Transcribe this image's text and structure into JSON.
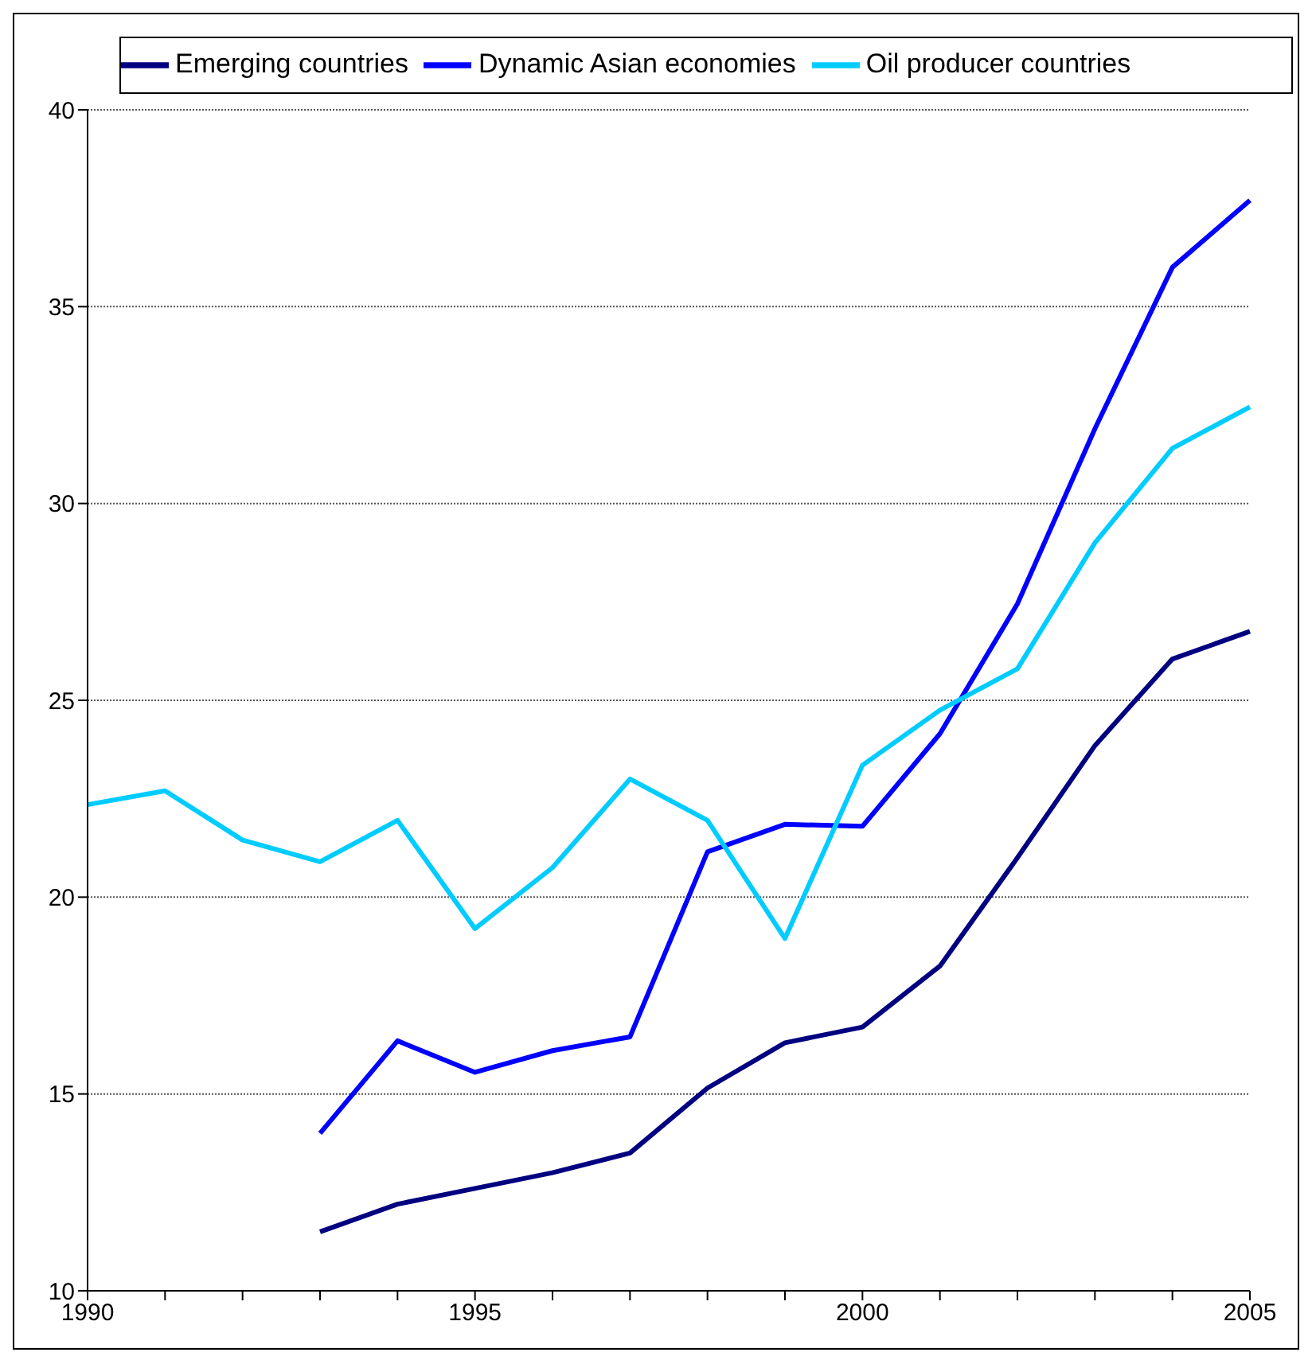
{
  "chart_data": {
    "type": "line",
    "categories": [
      "1990",
      null,
      null,
      null,
      null,
      "1995",
      null,
      null,
      null,
      null,
      "2000",
      null,
      null,
      null,
      null,
      "2005"
    ],
    "series": [
      {
        "name": "Emerging countries",
        "color": "#000080",
        "values": [
          null,
          null,
          null,
          11.5,
          12.2,
          12.6,
          13.0,
          13.5,
          15.15,
          16.3,
          16.7,
          18.25,
          21.0,
          23.85,
          26.05,
          26.75
        ]
      },
      {
        "name": "Dynamic Asian economies",
        "color": "#0000ff",
        "values": [
          null,
          null,
          null,
          14.0,
          16.35,
          15.55,
          16.1,
          16.45,
          21.15,
          21.85,
          21.8,
          24.15,
          27.45,
          31.9,
          36.0,
          37.7
        ]
      },
      {
        "name": "Oil producer countries",
        "color": "#00ccff",
        "values": [
          22.35,
          22.7,
          21.45,
          20.9,
          21.95,
          19.2,
          20.75,
          23.0,
          21.95,
          18.95,
          23.35,
          24.75,
          25.8,
          29.0,
          31.4,
          32.45
        ]
      }
    ],
    "ylim": [
      10,
      40
    ],
    "yticks": [
      10,
      15,
      20,
      25,
      30,
      35,
      40
    ],
    "grid": "y",
    "legend": "top",
    "marker": "none",
    "line_style": "solid"
  }
}
